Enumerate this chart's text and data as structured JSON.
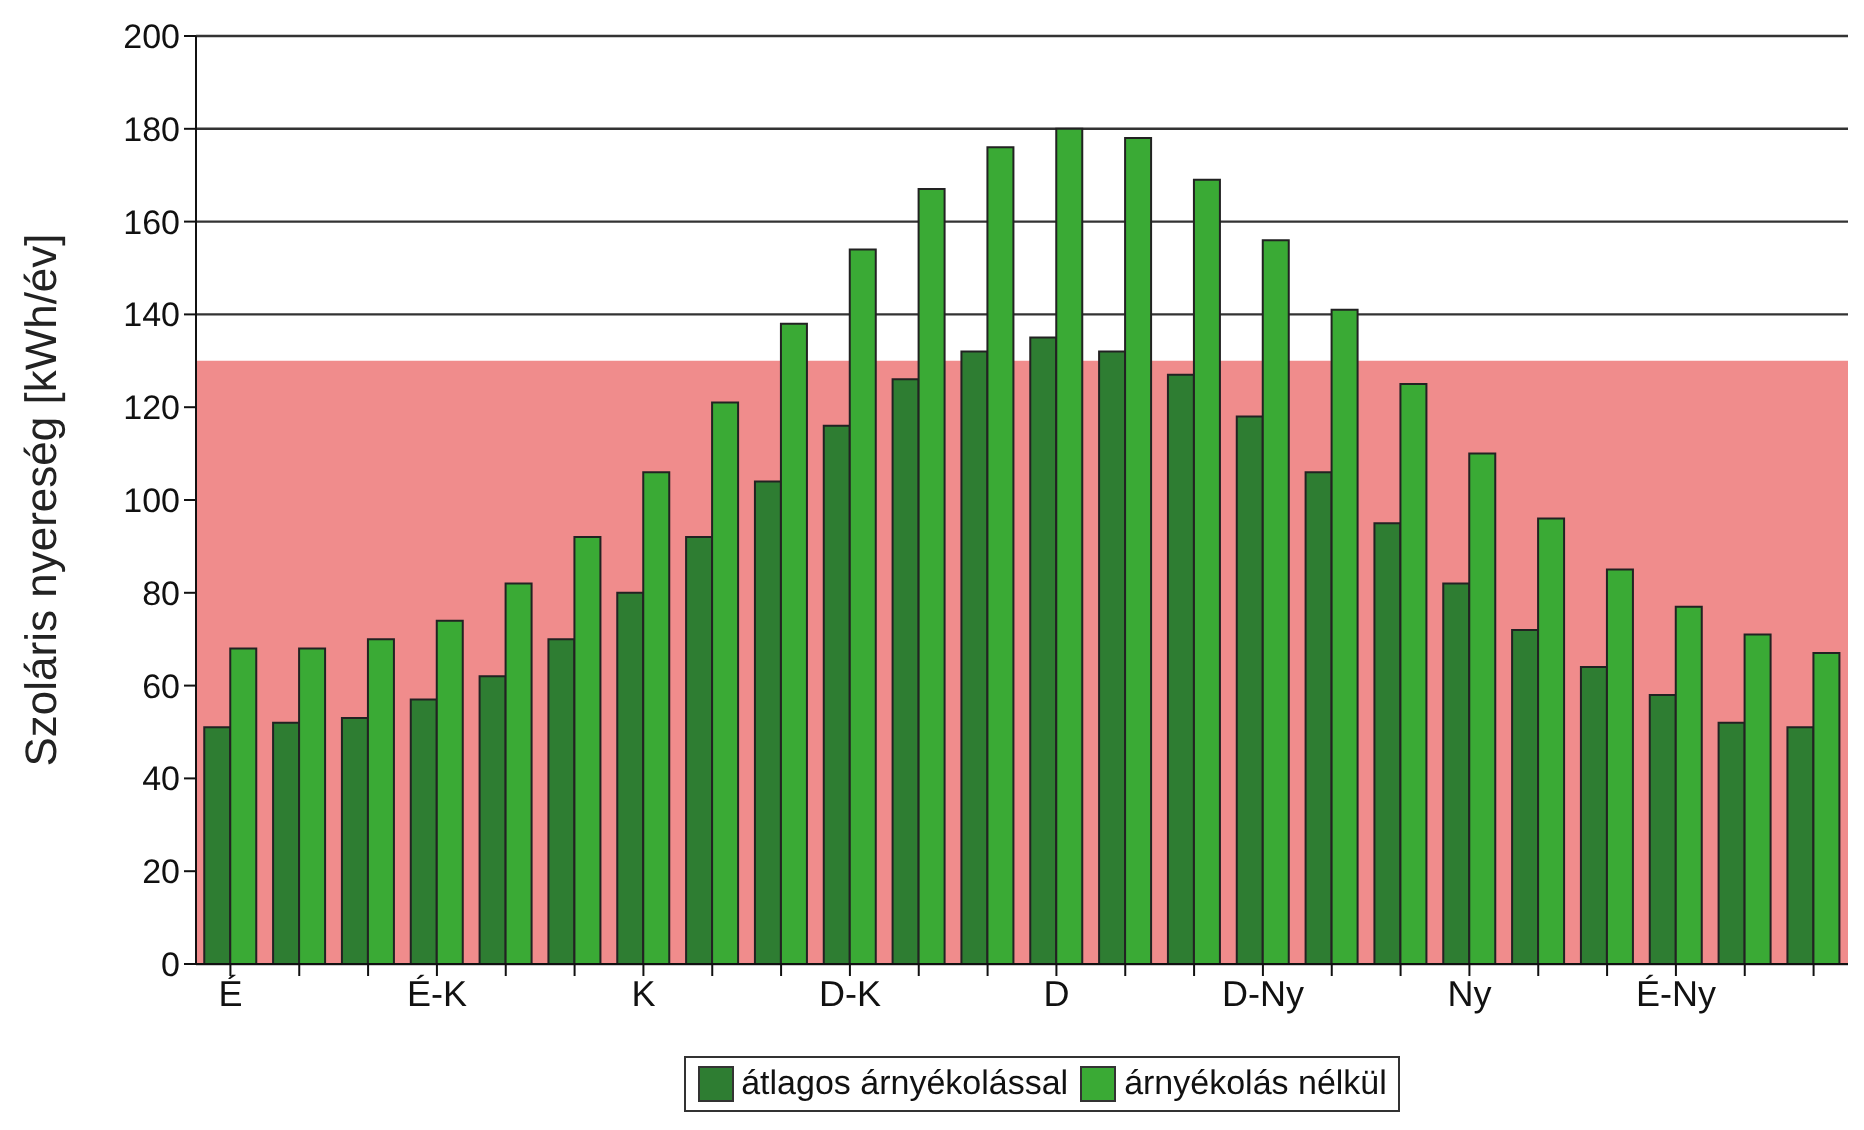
{
  "chart_data": {
    "type": "bar",
    "ylabel": "Szoláris nyereség [kWh/év]",
    "categories": [
      "É",
      null,
      null,
      "É-K",
      null,
      null,
      "K",
      null,
      null,
      "D-K",
      null,
      null,
      "D",
      null,
      null,
      "D-Ny",
      null,
      null,
      "Ny",
      null,
      null,
      "É-Ny",
      null,
      null
    ],
    "series": [
      {
        "name": "átlagos árnyékolással",
        "color": "#2e7d32",
        "values": [
          51,
          52,
          53,
          57,
          62,
          70,
          80,
          92,
          104,
          116,
          126,
          132,
          135,
          132,
          127,
          118,
          106,
          95,
          82,
          72,
          64,
          58,
          52,
          51
        ]
      },
      {
        "name": "árnyékolás nélkül",
        "color": "#3aaa35",
        "values": [
          68,
          68,
          70,
          74,
          82,
          92,
          106,
          121,
          138,
          154,
          167,
          176,
          180,
          178,
          169,
          156,
          141,
          125,
          110,
          96,
          85,
          77,
          71,
          67
        ]
      }
    ],
    "ylim": [
      0,
      200
    ],
    "yticks": [
      0,
      20,
      40,
      60,
      80,
      100,
      120,
      140,
      160,
      180,
      200
    ],
    "grid": "y",
    "legend": "bottom",
    "bands": [
      {
        "axis": "y",
        "from": 0,
        "to": 130,
        "color": "#f08c8c"
      }
    ]
  }
}
